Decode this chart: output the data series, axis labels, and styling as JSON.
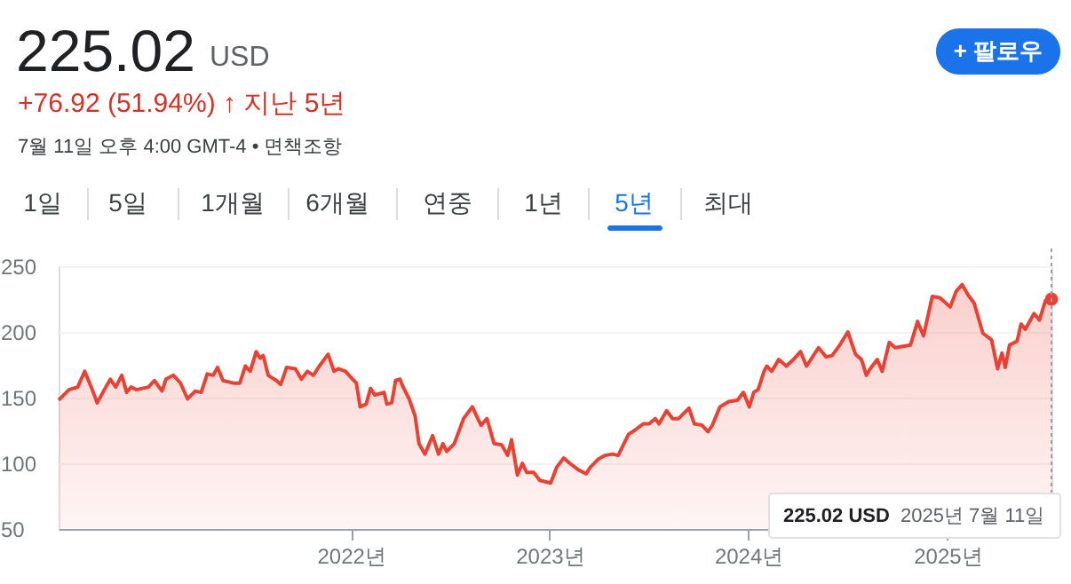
{
  "chart_data": {
    "type": "area",
    "title": "225.02",
    "annotations": [
      "USD",
      "+76.92 (51.94%) ↑ 지난 5년",
      "7월 11일 오후 4:00 GMT-4 • 면책조항",
      "+ 팔로우",
      "1일",
      "5일",
      "1개월",
      "6개월",
      "연중",
      "1년",
      "5년",
      "최대",
      "225.02 USD",
      "2025년 7월 11일"
    ],
    "series": [
      {
        "color": "#e94235",
        "x": [
          "2020-07-13",
          "2020-08-01",
          "2020-08-17",
          "2020-08-30",
          "2020-09-11",
          "2020-09-22",
          "2020-10-05",
          "2020-10-16",
          "2020-10-26",
          "2020-11-06",
          "2020-11-15",
          "2020-11-23",
          "2020-12-03",
          "2020-12-25",
          "2021-01-05",
          "2021-01-19",
          "2021-01-26",
          "2021-02-09",
          "2021-02-22",
          "2021-03-07",
          "2021-03-21",
          "2021-04-01",
          "2021-04-12",
          "2021-04-23",
          "2021-05-01",
          "2021-05-11",
          "2021-05-31",
          "2021-06-11",
          "2021-06-21",
          "2021-06-30",
          "2021-07-11",
          "2021-07-18",
          "2021-07-24",
          "2021-08-02",
          "2021-08-17",
          "2021-08-25",
          "2021-09-05",
          "2021-09-21",
          "2021-10-02",
          "2021-10-13",
          "2021-10-24",
          "2021-11-04",
          "2021-11-20",
          "2021-12-01",
          "2021-12-09",
          "2021-12-22",
          "2022-01-02",
          "2022-01-11",
          "2022-01-18",
          "2022-01-29",
          "2022-02-06",
          "2022-02-14",
          "2022-03-03",
          "2022-03-08",
          "2022-03-17",
          "2022-03-24",
          "2022-04-01",
          "2022-04-07",
          "2022-04-18",
          "2022-04-29",
          "2022-05-06",
          "2022-05-17",
          "2022-05-31",
          "2022-06-11",
          "2022-06-19",
          "2022-06-26",
          "2022-07-10",
          "2022-07-27",
          "2022-08-12",
          "2022-08-28",
          "2022-09-08",
          "2022-09-21",
          "2022-10-05",
          "2022-10-16",
          "2022-10-23",
          "2022-11-03",
          "2022-11-12",
          "2022-11-20",
          "2022-12-03",
          "2022-12-14",
          "2023-01-03",
          "2023-01-14",
          "2023-01-27",
          "2023-02-07",
          "2023-02-23",
          "2023-03-09",
          "2023-03-17",
          "2023-03-31",
          "2023-04-13",
          "2023-04-26",
          "2023-05-07",
          "2023-05-26",
          "2023-06-06",
          "2023-06-22",
          "2023-07-03",
          "2023-07-14",
          "2023-07-21",
          "2023-08-04",
          "2023-08-15",
          "2023-08-26",
          "2023-09-14",
          "2023-09-24",
          "2023-10-08",
          "2023-10-19",
          "2023-10-27",
          "2023-11-10",
          "2023-11-26",
          "2023-12-12",
          "2023-12-23",
          "2024-01-03",
          "2024-01-11",
          "2024-01-19",
          "2024-01-30",
          "2024-02-04",
          "2024-02-13",
          "2024-02-26",
          "2024-03-11",
          "2024-03-24",
          "2024-04-06",
          "2024-04-17",
          "2024-05-09",
          "2024-05-23",
          "2024-06-03",
          "2024-06-17",
          "2024-07-02",
          "2024-07-16",
          "2024-07-27",
          "2024-08-05",
          "2024-08-12",
          "2024-08-25",
          "2024-09-03",
          "2024-09-16",
          "2024-09-27",
          "2024-10-11",
          "2024-10-25",
          "2024-11-07",
          "2024-11-18",
          "2024-12-04",
          "2024-12-18",
          "2025-01-06",
          "2025-01-17",
          "2025-01-28",
          "2025-02-08",
          "2025-02-19",
          "2025-03-07",
          "2025-03-23",
          "2025-04-03",
          "2025-04-11",
          "2025-04-17",
          "2025-04-25",
          "2025-05-09",
          "2025-05-16",
          "2025-05-24",
          "2025-06-09",
          "2025-06-19",
          "2025-06-30",
          "2025-07-11"
        ],
        "values": [
          148,
          156,
          158,
          170,
          158,
          146,
          156,
          164,
          158,
          167,
          154,
          158,
          156,
          158,
          163,
          155,
          164,
          167,
          161,
          149,
          155,
          154,
          168,
          167,
          173,
          163,
          161,
          161,
          174,
          170,
          185,
          180,
          182,
          167,
          163,
          160,
          173,
          172,
          164,
          170,
          167,
          174,
          183,
          170,
          172,
          170,
          165,
          161,
          143,
          145,
          157,
          152,
          154,
          145,
          146,
          163,
          164,
          158,
          149,
          136,
          115,
          107,
          121,
          107,
          115,
          109,
          115,
          134,
          143,
          129,
          134,
          115,
          114,
          106,
          118,
          91,
          100,
          93,
          93,
          87,
          85,
          97,
          104,
          100,
          95,
          92,
          97,
          103,
          106,
          107,
          106,
          122,
          125,
          130,
          130,
          134,
          130,
          140,
          134,
          134,
          142,
          130,
          129,
          124,
          129,
          143,
          147,
          148,
          154,
          143,
          154,
          156,
          170,
          174,
          170,
          179,
          174,
          179,
          185,
          174,
          188,
          181,
          182,
          190,
          200,
          183,
          179,
          167,
          172,
          179,
          170,
          192,
          188,
          189,
          190,
          208,
          197,
          227,
          226,
          219,
          231,
          236,
          228,
          222,
          199,
          194,
          172,
          184,
          173,
          190,
          193,
          206,
          202,
          214,
          209,
          224,
          225.02
        ]
      },
      {
        "type": "scatter",
        "color": "#e94235",
        "x": [
          "2025-07-11"
        ],
        "values": [
          225.02
        ]
      }
    ],
    "xlim": [
      "2020-07-13",
      "2025-07-11"
    ],
    "xticks": [
      {
        "value": "2022-01-01",
        "label": "2022년"
      },
      {
        "value": "2023-01-01",
        "label": "2023년"
      },
      {
        "value": "2024-01-01",
        "label": "2024년"
      },
      {
        "value": "2025-01-01",
        "label": "2025년"
      }
    ],
    "ylim": [
      50,
      250
    ],
    "yticks": [
      50,
      100,
      150,
      200,
      250
    ],
    "grid": "y",
    "ref_lines": [
      {
        "axis": "x",
        "value": "2025-07-11",
        "label": null,
        "color": "#9aa0a6",
        "line_style": "dotted"
      }
    ]
  }
}
